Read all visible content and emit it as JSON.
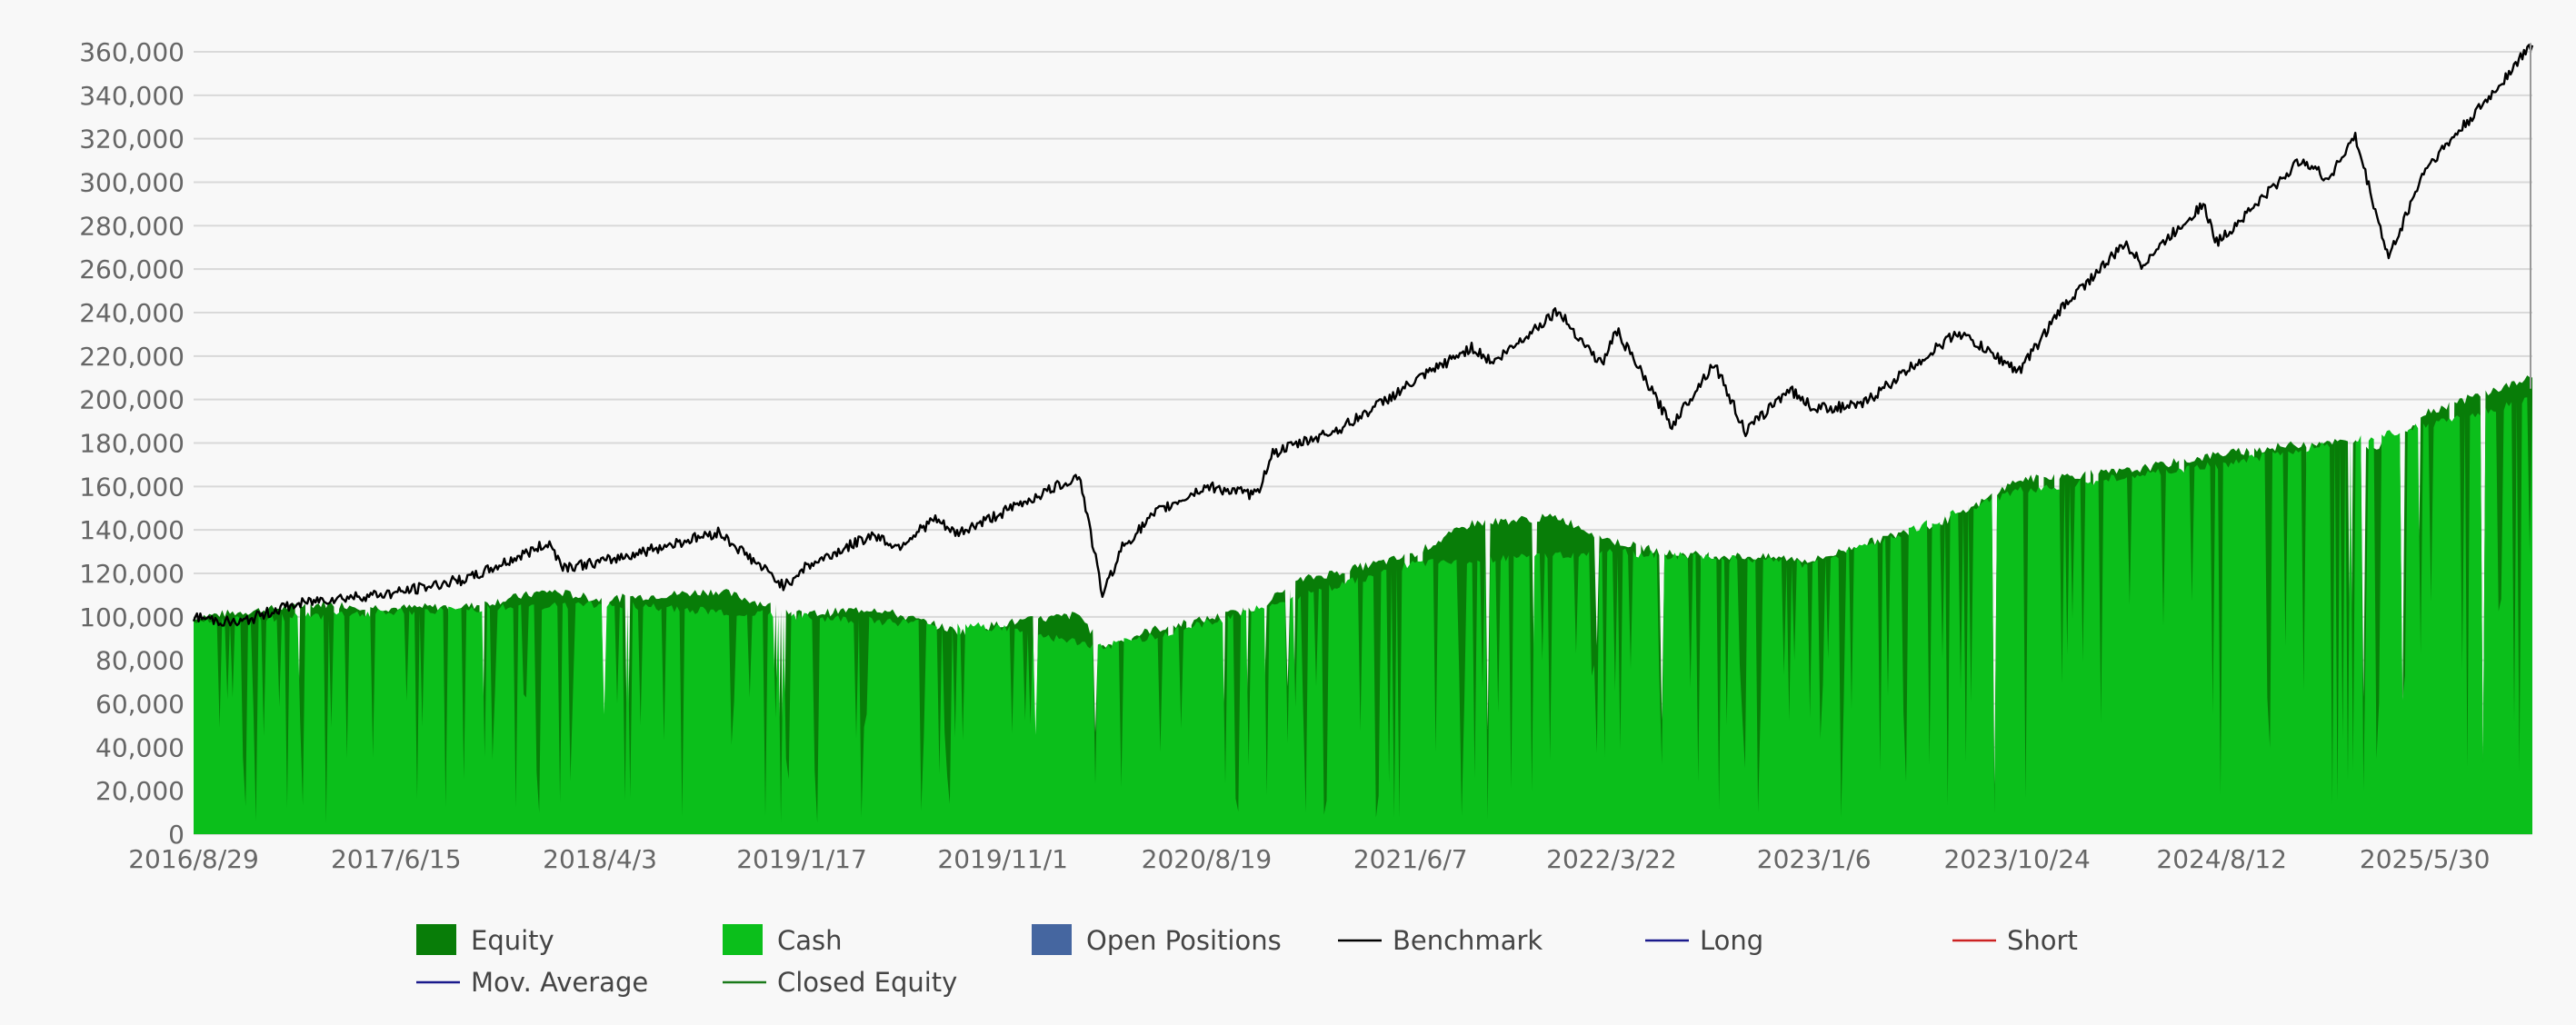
{
  "chart_data": {
    "type": "area",
    "title": "",
    "xlabel": "",
    "ylabel": "",
    "ylim": [
      0,
      360000
    ],
    "y_ticks": [
      0,
      20000,
      40000,
      60000,
      80000,
      100000,
      120000,
      140000,
      160000,
      180000,
      200000,
      220000,
      240000,
      260000,
      280000,
      300000,
      320000,
      340000,
      360000
    ],
    "x_tick_labels": [
      "2016/8/29",
      "2017/6/15",
      "2018/4/3",
      "2019/1/17",
      "2019/11/1",
      "2020/8/19",
      "2021/6/7",
      "2022/3/22",
      "2023/1/6",
      "2023/10/24",
      "2024/8/12",
      "2025/5/30"
    ],
    "x_range": [
      "2016/8/29",
      "2025/10/31"
    ],
    "grid": true,
    "legend_position": "bottom",
    "colors": {
      "equity": "#087d08",
      "cash": "#0bbf1b",
      "open_positions": "#4566a0",
      "benchmark": "#000000",
      "long": "#1a1a8c",
      "short": "#cc2222",
      "mov_average": "#1a1a8c",
      "closed_equity": "#1a7a1a",
      "grid": "#d9d9d9",
      "axis_text": "#666666"
    },
    "series": [
      {
        "name": "Benchmark",
        "style": "line",
        "points": [
          [
            "2016/8/29",
            100000
          ],
          [
            "2016/11/1",
            97000
          ],
          [
            "2017/1/1",
            104000
          ],
          [
            "2017/3/1",
            108000
          ],
          [
            "2017/6/15",
            111000
          ],
          [
            "2017/10/1",
            118000
          ],
          [
            "2018/1/20",
            134000
          ],
          [
            "2018/2/10",
            123000
          ],
          [
            "2018/4/3",
            125000
          ],
          [
            "2018/9/20",
            139000
          ],
          [
            "2018/12/24",
            114000
          ],
          [
            "2019/1/17",
            122000
          ],
          [
            "2019/4/30",
            138000
          ],
          [
            "2019/6/3",
            132000
          ],
          [
            "2019/7/26",
            145000
          ],
          [
            "2019/8/26",
            138000
          ],
          [
            "2019/11/1",
            148000
          ],
          [
            "2020/2/19",
            165000
          ],
          [
            "2020/3/23",
            110000
          ],
          [
            "2020/4/20",
            132000
          ],
          [
            "2020/6/8",
            148000
          ],
          [
            "2020/8/19",
            160000
          ],
          [
            "2020/10/30",
            156000
          ],
          [
            "2020/11/20",
            175000
          ],
          [
            "2021/3/1",
            187000
          ],
          [
            "2021/6/7",
            207000
          ],
          [
            "2021/9/2",
            224000
          ],
          [
            "2021/10/4",
            217000
          ],
          [
            "2022/1/3",
            241000
          ],
          [
            "2022/3/8",
            216000
          ],
          [
            "2022/3/29",
            232000
          ],
          [
            "2022/6/16",
            188000
          ],
          [
            "2022/8/16",
            217000
          ],
          [
            "2022/9/30",
            185000
          ],
          [
            "2022/12/1",
            205000
          ],
          [
            "2023/1/6",
            196000
          ],
          [
            "2023/3/13",
            197000
          ],
          [
            "2023/7/31",
            231000
          ],
          [
            "2023/10/27",
            213000
          ],
          [
            "2023/12/29",
            243000
          ],
          [
            "2024/3/28",
            272000
          ],
          [
            "2024/4/19",
            262000
          ],
          [
            "2024/7/16",
            290000
          ],
          [
            "2024/8/5",
            272000
          ],
          [
            "2024/12/6",
            311000
          ],
          [
            "2025/1/10",
            301000
          ],
          [
            "2025/2/19",
            321000
          ],
          [
            "2025/4/8",
            265000
          ],
          [
            "2025/5/30",
            306000
          ],
          [
            "2025/8/28",
            338000
          ],
          [
            "2025/10/31",
            364000
          ]
        ]
      },
      {
        "name": "Equity",
        "style": "area",
        "points": [
          [
            "2016/8/29",
            100000
          ],
          [
            "2017/3/1",
            106000
          ],
          [
            "2017/6/15",
            104000
          ],
          [
            "2017/10/1",
            105000
          ],
          [
            "2018/1/20",
            112000
          ],
          [
            "2018/4/3",
            108000
          ],
          [
            "2018/9/20",
            112000
          ],
          [
            "2019/1/17",
            101000
          ],
          [
            "2019/5/1",
            104000
          ],
          [
            "2019/9/1",
            93000
          ],
          [
            "2019/11/1",
            97000
          ],
          [
            "2020/2/19",
            101000
          ],
          [
            "2020/3/23",
            86000
          ],
          [
            "2020/6/1",
            94000
          ],
          [
            "2020/8/19",
            99000
          ],
          [
            "2020/10/30",
            104000
          ],
          [
            "2021/1/1",
            117000
          ],
          [
            "2021/6/7",
            128000
          ],
          [
            "2021/9/2",
            143000
          ],
          [
            "2022/1/3",
            146000
          ],
          [
            "2022/3/22",
            135000
          ],
          [
            "2022/6/16",
            129000
          ],
          [
            "2022/12/1",
            127000
          ],
          [
            "2023/1/6",
            126000
          ],
          [
            "2023/3/13",
            133000
          ],
          [
            "2023/7/31",
            146000
          ],
          [
            "2023/10/24",
            163000
          ],
          [
            "2024/3/28",
            167000
          ],
          [
            "2024/8/12",
            175000
          ],
          [
            "2025/1/10",
            181000
          ],
          [
            "2025/4/8",
            178000
          ],
          [
            "2025/5/30",
            194000
          ],
          [
            "2025/10/31",
            210000
          ]
        ]
      },
      {
        "name": "Cash",
        "style": "area",
        "points": [
          [
            "2016/8/29",
            98000
          ],
          [
            "2017/6/15",
            102000
          ],
          [
            "2018/4/3",
            106000
          ],
          [
            "2019/1/17",
            100000
          ],
          [
            "2019/11/1",
            95000
          ],
          [
            "2020/3/23",
            86000
          ],
          [
            "2020/8/19",
            97000
          ],
          [
            "2021/6/7",
            124000
          ],
          [
            "2022/3/22",
            130000
          ],
          [
            "2023/1/6",
            124000
          ],
          [
            "2023/10/24",
            158000
          ],
          [
            "2024/8/12",
            170000
          ],
          [
            "2025/5/30",
            188000
          ],
          [
            "2025/10/31",
            200000
          ]
        ]
      },
      {
        "name": "Open Positions",
        "style": "area",
        "points": []
      },
      {
        "name": "Long",
        "style": "line",
        "points": []
      },
      {
        "name": "Short",
        "style": "line",
        "points": []
      },
      {
        "name": "Mov. Average",
        "style": "line",
        "points": []
      },
      {
        "name": "Closed Equity",
        "style": "line",
        "points": []
      }
    ],
    "legend": [
      {
        "label": "Equity",
        "symbol": "box",
        "color_key": "equity"
      },
      {
        "label": "Cash",
        "symbol": "box",
        "color_key": "cash"
      },
      {
        "label": "Open Positions",
        "symbol": "box",
        "color_key": "open_positions"
      },
      {
        "label": "Benchmark",
        "symbol": "line",
        "color_key": "benchmark"
      },
      {
        "label": "Long",
        "symbol": "line",
        "color_key": "long"
      },
      {
        "label": "Short",
        "symbol": "line",
        "color_key": "short"
      },
      {
        "label": "Mov. Average",
        "symbol": "line",
        "color_key": "mov_average"
      },
      {
        "label": "Closed Equity",
        "symbol": "line",
        "color_key": "closed_equity"
      }
    ]
  }
}
